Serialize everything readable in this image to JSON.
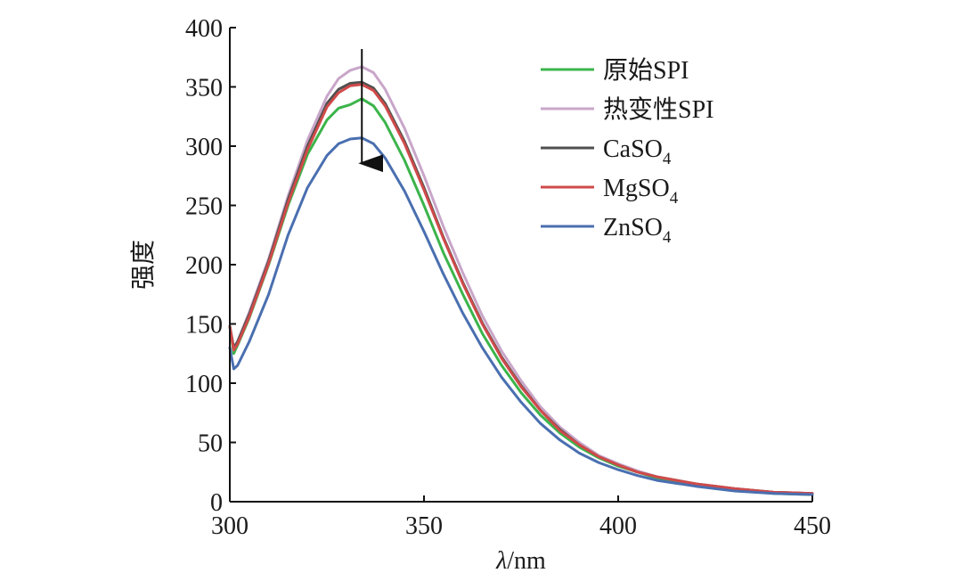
{
  "chart_data": {
    "type": "line",
    "xlabel_italic": "λ",
    "xlabel_rest": "/nm",
    "ylabel": "强度",
    "xlim": [
      300,
      450
    ],
    "ylim": [
      0,
      400
    ],
    "x_ticks": [
      300,
      350,
      400,
      450
    ],
    "y_ticks": [
      0,
      50,
      100,
      150,
      200,
      250,
      300,
      350,
      400
    ],
    "grid": false,
    "legend_position": "top-right",
    "annotation": {
      "type": "arrow-down",
      "x": 334,
      "y_from": 382,
      "y_to": 275
    },
    "x": [
      300,
      301,
      302,
      305,
      310,
      315,
      320,
      325,
      328,
      331,
      334,
      337,
      340,
      345,
      350,
      355,
      360,
      365,
      370,
      375,
      380,
      385,
      390,
      395,
      400,
      405,
      410,
      420,
      430,
      440,
      450
    ],
    "series": [
      {
        "name": "原始SPI",
        "sub": "",
        "color": "#3cb44b",
        "values": [
          148,
          125,
          132,
          155,
          200,
          250,
          293,
          322,
          332,
          335,
          340,
          334,
          320,
          288,
          250,
          210,
          175,
          142,
          115,
          92,
          73,
          58,
          46,
          37,
          30,
          25,
          20,
          14,
          10,
          7,
          6
        ]
      },
      {
        "name": "热变性SPI",
        "sub": "",
        "color": "#c9a6c9",
        "values": [
          148,
          128,
          135,
          160,
          205,
          258,
          305,
          342,
          357,
          364,
          367,
          362,
          348,
          315,
          275,
          232,
          193,
          157,
          127,
          102,
          80,
          63,
          50,
          39,
          32,
          26,
          21,
          15,
          11,
          8,
          7
        ]
      },
      {
        "name": "CaSO",
        "sub": "4",
        "color": "#505050",
        "values": [
          148,
          130,
          135,
          158,
          203,
          255,
          300,
          336,
          348,
          353,
          354,
          349,
          336,
          304,
          265,
          223,
          185,
          151,
          122,
          98,
          77,
          61,
          48,
          38,
          31,
          25,
          21,
          15,
          11,
          8,
          7
        ]
      },
      {
        "name": "MgSO",
        "sub": "4",
        "color": "#d04a4a",
        "values": [
          148,
          128,
          133,
          156,
          201,
          252,
          297,
          333,
          345,
          351,
          352,
          347,
          334,
          302,
          263,
          222,
          184,
          150,
          121,
          97,
          77,
          60,
          48,
          38,
          31,
          25,
          21,
          15,
          11,
          8,
          7
        ]
      },
      {
        "name": "ZnSO",
        "sub": "4",
        "color": "#4a6fb0",
        "values": [
          130,
          112,
          115,
          135,
          175,
          225,
          265,
          292,
          302,
          306,
          307,
          302,
          290,
          262,
          228,
          192,
          159,
          130,
          105,
          84,
          66,
          52,
          41,
          33,
          27,
          22,
          18,
          13,
          9,
          7,
          6
        ]
      }
    ]
  }
}
